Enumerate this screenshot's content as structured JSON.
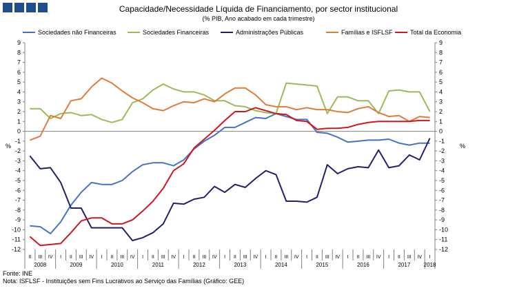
{
  "title": "Capacidade/Necessidade Líquida de Financiamento, por sector institucional",
  "subtitle": "(% PIB, Ano acabado em cada trimestre)",
  "footer": {
    "source": "Fonte: INE",
    "note": "Nota: ISFLSF - Instituições sem Fins Lucrativos ao Serviço das Famílias (Gráfico: GEE)"
  },
  "chart_data": {
    "type": "line",
    "ylabel_left": "%",
    "ylabel_right": "%",
    "ylim": [
      -12,
      9
    ],
    "yticks": [
      9,
      8,
      7,
      6,
      5,
      4,
      3,
      2,
      1,
      0,
      -1,
      -2,
      -3,
      -4,
      -5,
      -6,
      -7,
      -8,
      -9,
      -10,
      -11,
      -12
    ],
    "quarter_labels": [
      "II",
      "III",
      "IV",
      "I",
      "II",
      "III",
      "IV",
      "I",
      "II",
      "III",
      "IV",
      "I",
      "II",
      "III",
      "IV",
      "I",
      "II",
      "III",
      "IV",
      "I",
      "II",
      "III",
      "IV",
      "I",
      "II",
      "III",
      "IV",
      "I",
      "II",
      "III",
      "IV",
      "I",
      "II",
      "III",
      "IV",
      "I",
      "II",
      "III",
      "IV",
      "I"
    ],
    "years": [
      {
        "label": "2008",
        "start": 0,
        "end": 3
      },
      {
        "label": "2009",
        "start": 3,
        "end": 7
      },
      {
        "label": "2010",
        "start": 7,
        "end": 11
      },
      {
        "label": "2011",
        "start": 11,
        "end": 15
      },
      {
        "label": "2012",
        "start": 15,
        "end": 19
      },
      {
        "label": "2013",
        "start": 19,
        "end": 23
      },
      {
        "label": "2014",
        "start": 23,
        "end": 27
      },
      {
        "label": "2015",
        "start": 27,
        "end": 31
      },
      {
        "label": "2016",
        "start": 31,
        "end": 35
      },
      {
        "label": "2017",
        "start": 35,
        "end": 39
      },
      {
        "label": "2018",
        "start": 39,
        "end": 40
      }
    ],
    "legend_position": "top",
    "grid": false,
    "series": [
      {
        "name": "Sociedades não Financeiras",
        "color": "#4472c4",
        "values": [
          -9.6,
          -9.7,
          -10.4,
          -9.2,
          -7.5,
          -6.2,
          -5.2,
          -5.4,
          -5.4,
          -5.0,
          -4.1,
          -3.4,
          -3.2,
          -3.2,
          -3.5,
          -2.9,
          -1.8,
          -1.0,
          -0.4,
          0.4,
          0.4,
          0.9,
          1.4,
          1.3,
          1.8,
          1.5,
          1.2,
          1.2,
          -0.1,
          -0.2,
          -0.6,
          -1.1,
          -1.0,
          -0.9,
          -0.9,
          -0.8,
          -1.2,
          -1.4,
          -1.2,
          -1.2
        ]
      },
      {
        "name": "Sociedades Financeiras",
        "color": "#9bbb59",
        "values": [
          2.3,
          2.3,
          1.3,
          1.8,
          1.9,
          1.6,
          1.7,
          1.2,
          0.9,
          1.2,
          2.9,
          3.3,
          4.2,
          4.8,
          4.3,
          4.0,
          4.0,
          3.7,
          3.1,
          3.1,
          2.6,
          2.5,
          2.1,
          1.9,
          1.8,
          4.9,
          4.8,
          4.7,
          4.6,
          1.8,
          3.5,
          3.5,
          3.1,
          3.1,
          1.8,
          4.1,
          4.2,
          4.0,
          4.0,
          2.0
        ]
      },
      {
        "name": "Administrações Públicas",
        "color": "#1f1f6e",
        "values": [
          -2.5,
          -3.8,
          -3.7,
          -5.2,
          -7.8,
          -7.8,
          -9.8,
          -9.8,
          -9.8,
          -9.8,
          -11.1,
          -10.8,
          -10.3,
          -9.4,
          -7.3,
          -7.4,
          -6.9,
          -6.7,
          -5.6,
          -6.2,
          -5.4,
          -5.7,
          -4.8,
          -4.0,
          -4.4,
          -7.1,
          -7.1,
          -7.2,
          -6.7,
          -3.4,
          -4.3,
          -3.8,
          -3.6,
          -3.7,
          -1.9,
          -3.7,
          -3.5,
          -2.4,
          -2.9,
          -0.7
        ]
      },
      {
        "name": "Famílias e ISFLSF",
        "color": "#e07b39",
        "values": [
          -0.9,
          -0.5,
          1.6,
          1.3,
          3.1,
          3.3,
          4.5,
          5.4,
          4.9,
          4.1,
          3.4,
          2.9,
          2.3,
          2.1,
          2.6,
          3.0,
          2.9,
          3.3,
          3.0,
          3.8,
          4.4,
          4.4,
          3.7,
          2.7,
          2.5,
          2.5,
          2.2,
          2.4,
          2.2,
          2.2,
          2.0,
          1.9,
          2.3,
          2.5,
          1.9,
          1.5,
          1.6,
          1.0,
          1.5,
          1.4
        ]
      },
      {
        "name": "Total da Economia",
        "color": "#d0161e",
        "values": [
          -10.7,
          -11.6,
          -11.5,
          -11.4,
          -10.3,
          -9.1,
          -8.8,
          -8.8,
          -9.4,
          -9.4,
          -9.0,
          -8.1,
          -7.1,
          -5.8,
          -4.0,
          -3.3,
          -1.7,
          -0.8,
          0.1,
          1.1,
          2.0,
          2.0,
          2.4,
          2.1,
          1.8,
          1.7,
          1.1,
          1.0,
          0.2,
          0.3,
          0.3,
          0.4,
          0.7,
          0.9,
          1.0,
          1.0,
          1.0,
          1.0,
          1.1,
          1.1
        ]
      }
    ]
  }
}
